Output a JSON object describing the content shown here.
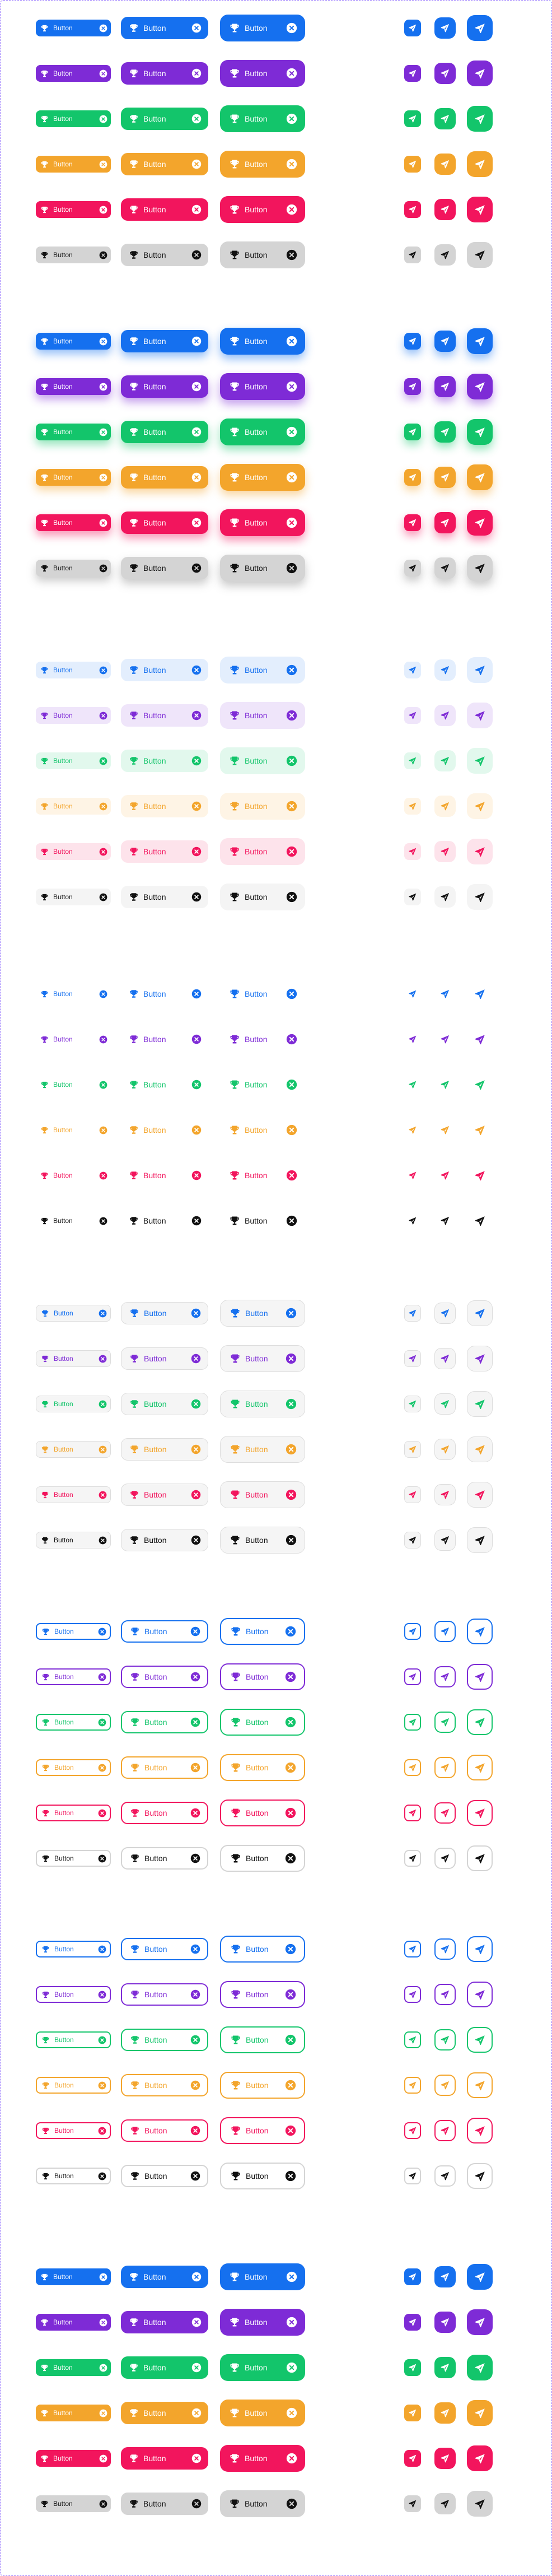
{
  "button_label": "Button",
  "icons": {
    "left": "trophy-icon",
    "right": "close-circle-icon",
    "icon_only": "send-icon"
  },
  "colors": {
    "primary": "#1570ef",
    "secondary": "#7e2bd6",
    "success": "#13c56b",
    "warning": "#f3a52c",
    "danger": "#f2155d",
    "neutral": "#d4d4d4"
  },
  "sizes": [
    "small",
    "medium",
    "large"
  ],
  "palette_order": [
    "primary",
    "secondary",
    "success",
    "warning",
    "danger",
    "neutral"
  ],
  "variants": [
    {
      "id": "solid"
    },
    {
      "id": "shadow"
    },
    {
      "id": "flat"
    },
    {
      "id": "light"
    },
    {
      "id": "faded"
    },
    {
      "id": "bordered"
    },
    {
      "id": "ghost"
    },
    {
      "id": "solid-square"
    }
  ]
}
